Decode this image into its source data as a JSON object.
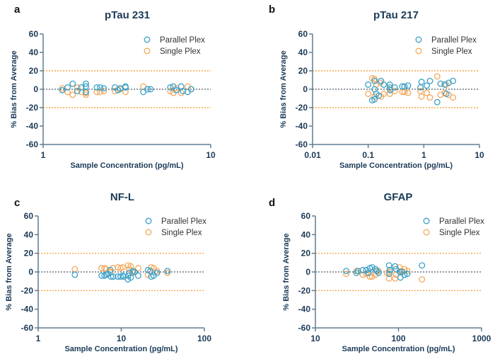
{
  "colors": {
    "parallel": "#3aa0c8",
    "single": "#f5a85a",
    "text": "#1b3a57",
    "axis": "#5f7d92",
    "zero_line": "#4a5a6a",
    "limit_line": "#f7941d"
  },
  "chart_data": [
    {
      "panel": "a",
      "type": "scatter",
      "title": "pTau 231",
      "xlabel": "Sample Concentration (pg/mL)",
      "ylabel": "% Bias from Average",
      "xscale": "log",
      "xlim": [
        1,
        10
      ],
      "xticks": [
        "1",
        "10"
      ],
      "ylim": [
        -60,
        60
      ],
      "yticks": [
        "60",
        "40",
        "20",
        "0",
        "-20",
        "-40",
        "-60"
      ],
      "reference_lines": [
        0,
        20,
        -20
      ],
      "legend_position": "top-right",
      "grid": false,
      "series": [
        {
          "name": "Parallel Plex",
          "x": [
            1.3,
            1.4,
            1.5,
            1.6,
            1.69,
            1.8,
            1.8,
            1.8,
            2.09,
            2.19,
            2.3,
            2.68,
            2.8,
            2.88,
            3.1,
            3.1,
            3.96,
            4.19,
            4.37,
            5.74,
            5.98,
            6.24,
            6.66,
            6.82,
            7.28,
            7.64
          ],
          "y": [
            -1,
            2,
            6,
            -2,
            2,
            6,
            3,
            -3,
            2,
            2,
            1,
            2,
            -1,
            1,
            2,
            3,
            -3,
            0,
            0,
            2,
            3,
            -1,
            3,
            -2,
            -3,
            0
          ]
        },
        {
          "name": "Single Plex",
          "x": [
            1.3,
            1.4,
            1.5,
            1.6,
            1.69,
            1.8,
            1.8,
            2.09,
            2.19,
            2.3,
            2.68,
            2.88,
            3.1,
            3.96,
            5.74,
            5.98,
            6.24,
            6.66,
            7.28,
            7.64
          ],
          "y": [
            1,
            -3,
            -6,
            2,
            -3,
            -6,
            -4,
            -3,
            -3,
            -2,
            -2,
            0,
            -3,
            3,
            -2,
            -4,
            1,
            -4,
            3,
            0
          ]
        }
      ]
    },
    {
      "panel": "b",
      "type": "scatter",
      "title": "pTau 217",
      "xlabel": "Sample Concentration (pg/mL)",
      "ylabel": "% Bias from Average",
      "xscale": "log",
      "xlim": [
        0.01,
        10
      ],
      "xticks": [
        "0.01",
        "0.1",
        "1",
        "10"
      ],
      "ylim": [
        -60,
        60
      ],
      "yticks": [
        "60",
        "40",
        "20",
        "0",
        "-20",
        "-40",
        "-60"
      ],
      "reference_lines": [
        0,
        20,
        -20
      ],
      "legend_position": "top-right",
      "grid": false,
      "series": [
        {
          "name": "Parallel Plex",
          "x": [
            0.1,
            0.118,
            0.13,
            0.13,
            0.13,
            0.14,
            0.17,
            0.19,
            0.155,
            0.245,
            0.245,
            0.25,
            0.3,
            0.41,
            0.45,
            0.52,
            0.87,
            0.91,
            1.13,
            1.29,
            1.74,
            2.0,
            2.37,
            2.54,
            2.8,
            3.34
          ],
          "y": [
            5,
            -12,
            -11,
            0,
            9,
            -5,
            9,
            5,
            -7,
            5,
            2,
            -1,
            2,
            3,
            3,
            4,
            2,
            8,
            4,
            9,
            -14,
            6,
            5,
            -5,
            7,
            9
          ]
        },
        {
          "name": "Single Plex",
          "x": [
            0.1,
            0.118,
            0.13,
            0.14,
            0.13,
            0.165,
            0.17,
            0.19,
            0.245,
            0.245,
            0.3,
            0.41,
            0.45,
            0.52,
            0.87,
            0.91,
            1.13,
            1.29,
            1.74,
            2.0,
            2.54,
            2.8,
            3.34,
            2.37
          ],
          "y": [
            -5,
            12,
            11,
            5,
            -8,
            7,
            -8,
            -5,
            -5,
            0,
            -2,
            -3,
            -3,
            -4,
            -2,
            -8,
            -4,
            -9,
            14,
            -6,
            5,
            -6,
            -9,
            -4
          ]
        }
      ]
    },
    {
      "panel": "c",
      "type": "scatter",
      "title": "NF-L",
      "xlabel": "Sample Concentration (pg/mL)",
      "ylabel": "% Bias from Average",
      "xscale": "log",
      "xlim": [
        1,
        100
      ],
      "xticks": [
        "1",
        "10",
        "100"
      ],
      "ylim": [
        -60,
        60
      ],
      "yticks": [
        "60",
        "40",
        "20",
        "0",
        "-20",
        "-40",
        "-60"
      ],
      "reference_lines": [
        0,
        20,
        -20
      ],
      "legend_position": "top-right",
      "grid": false,
      "series": [
        {
          "name": "Parallel Plex",
          "x": [
            2.76,
            5.8,
            6.3,
            6.6,
            6.9,
            7.4,
            7.5,
            8.0,
            9.1,
            9.8,
            10.4,
            10.7,
            12.0,
            12.1,
            12.5,
            13.0,
            13.8,
            14.4,
            16.0,
            20.9,
            22.4,
            23.0,
            24.6,
            26.9,
            36.0
          ],
          "y": [
            -3,
            -4,
            -4,
            -3,
            -2,
            2,
            -5,
            -5,
            -5,
            -5,
            -4,
            -5,
            -8,
            -4,
            -1,
            -6,
            1,
            0,
            -4,
            2,
            1,
            -5,
            -4,
            -1,
            1
          ]
        },
        {
          "name": "Single Plex",
          "x": [
            2.76,
            5.8,
            6.3,
            6.6,
            7.4,
            7.9,
            9.1,
            9.8,
            10.4,
            12.1,
            12.5,
            13.0,
            13.8,
            14.4,
            16.0,
            20.9,
            23.0,
            24.6,
            26.9,
            36.0
          ],
          "y": [
            3,
            4,
            4,
            3,
            0,
            4,
            5,
            4,
            5,
            7,
            3,
            6,
            -1,
            0,
            4,
            -3,
            5,
            4,
            1,
            -1
          ]
        }
      ]
    },
    {
      "panel": "d",
      "type": "scatter",
      "title": "GFAP",
      "xlabel": "Sample Concentration (pg/mL)",
      "ylabel": "% Bias from Average",
      "xscale": "log",
      "xlim": [
        10,
        1000
      ],
      "xticks": [
        "10",
        "100",
        "1000"
      ],
      "ylim": [
        -60,
        60
      ],
      "yticks": [
        "60",
        "40",
        "20",
        "0",
        "-20",
        "-40",
        "-60"
      ],
      "reference_lines": [
        0,
        20,
        -20
      ],
      "legend_position": "top-right",
      "grid": false,
      "series": [
        {
          "name": "Parallel Plex",
          "x": [
            23.5,
            31.3,
            32.6,
            37.2,
            41,
            43.5,
            45.2,
            48.3,
            52.9,
            55,
            57.6,
            77,
            78.6,
            77.5,
            91,
            93.6,
            103,
            105.6,
            110,
            118,
            128,
            192
          ],
          "y": [
            1,
            -1,
            1,
            2,
            2,
            -1,
            4,
            5,
            3,
            1,
            -1,
            7,
            2,
            -2,
            6,
            3,
            0,
            -6,
            0,
            -3,
            -2,
            7
          ]
        },
        {
          "name": "Single Plex",
          "x": [
            23.5,
            31.3,
            37.2,
            41,
            45.2,
            48.3,
            52.9,
            57.6,
            77,
            78.6,
            91,
            93.6,
            103,
            110,
            118,
            128,
            192,
            73
          ],
          "y": [
            -2,
            1,
            -3,
            -2,
            -5,
            -5,
            -3,
            1,
            -7,
            0,
            -7,
            -3,
            5,
            1,
            3,
            1,
            -8,
            -1
          ]
        }
      ]
    }
  ]
}
